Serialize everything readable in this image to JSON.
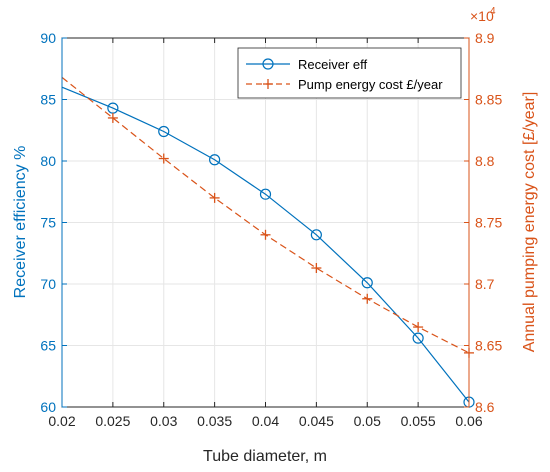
{
  "colors": {
    "left": "#0072BD",
    "right": "#D95319",
    "grid": "#E6E6E6",
    "frame": "#262626"
  },
  "chart_data": {
    "type": "line",
    "xlabel": "Tube diameter, m",
    "ylabel_left": "Receiver efficiency %",
    "ylabel_right": "Annual pumping energy cost [£/year]",
    "right_exponent_base": "×10",
    "right_exponent_power": "4",
    "xlim": [
      0.02,
      0.06
    ],
    "ylim_left": [
      60,
      90
    ],
    "ylim_right": [
      8.6,
      8.9
    ],
    "x_ticks": [
      "0.02",
      "0.025",
      "0.03",
      "0.035",
      "0.04",
      "0.045",
      "0.05",
      "0.055",
      "0.06"
    ],
    "y_left_ticks": [
      "60",
      "65",
      "70",
      "75",
      "80",
      "85",
      "90"
    ],
    "y_right_ticks": [
      "8.6",
      "8.65",
      "8.7",
      "8.75",
      "8.8",
      "8.85",
      "8.9"
    ],
    "grid": true,
    "legend_position": "top-right",
    "series": [
      {
        "name": "Receiver eff",
        "axis": "left",
        "style": "solid-circle",
        "x": [
          0.02,
          0.025,
          0.03,
          0.035,
          0.04,
          0.045,
          0.05,
          0.055,
          0.06
        ],
        "values": [
          86.0,
          84.3,
          82.4,
          80.1,
          77.3,
          74.0,
          70.1,
          65.6,
          60.4
        ],
        "marker_first": false
      },
      {
        "name": "Pump energy cost £/year",
        "axis": "right",
        "style": "dashed-plus",
        "x": [
          0.02,
          0.025,
          0.03,
          0.035,
          0.04,
          0.045,
          0.05,
          0.055,
          0.06
        ],
        "values": [
          8.868,
          8.835,
          8.802,
          8.77,
          8.74,
          8.713,
          8.688,
          8.665,
          8.644
        ],
        "marker_first": false
      }
    ]
  }
}
